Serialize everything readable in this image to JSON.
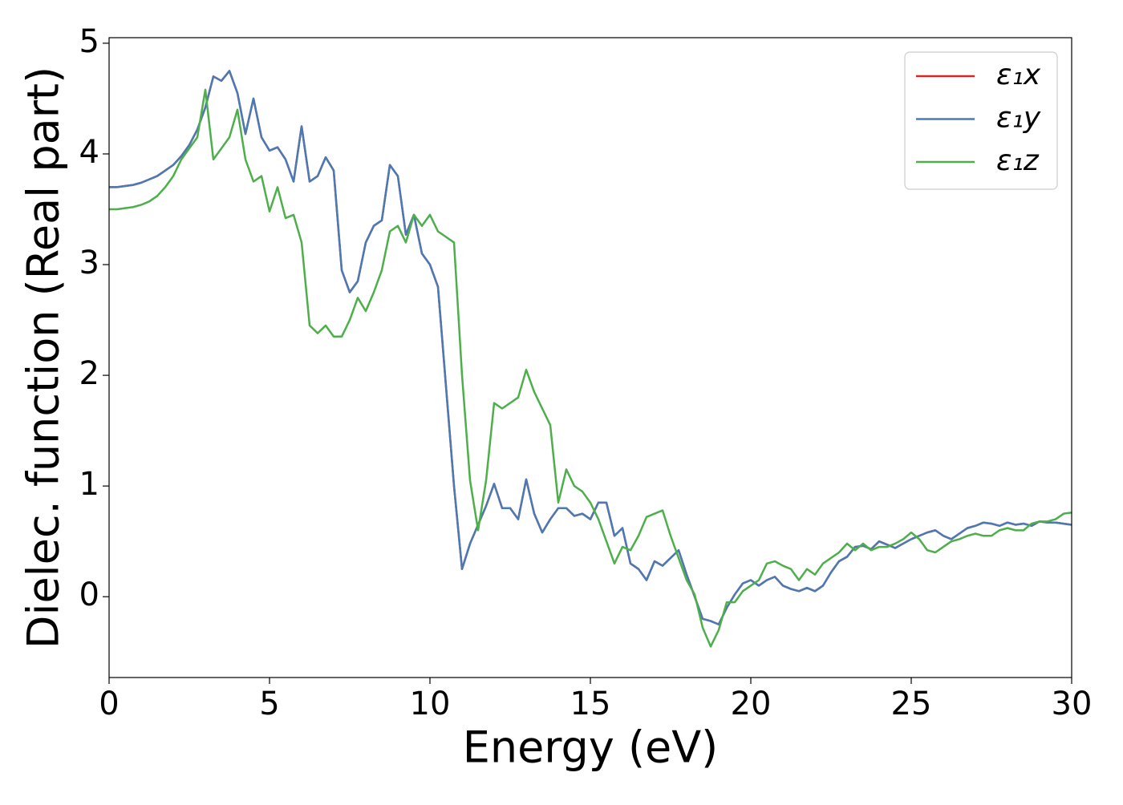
{
  "chart_data": {
    "type": "line",
    "xlabel": "Energy (eV)",
    "ylabel": "Dielec. function (Real part)",
    "x": [
      0,
      0.25,
      0.5,
      0.75,
      1,
      1.25,
      1.5,
      1.75,
      2,
      2.25,
      2.5,
      2.75,
      3,
      3.25,
      3.5,
      3.75,
      4,
      4.25,
      4.5,
      4.75,
      5,
      5.25,
      5.5,
      5.75,
      6,
      6.25,
      6.5,
      6.75,
      7,
      7.25,
      7.5,
      7.75,
      8,
      8.25,
      8.5,
      8.75,
      9,
      9.25,
      9.5,
      9.75,
      10,
      10.25,
      10.5,
      10.75,
      11,
      11.25,
      11.5,
      11.75,
      12,
      12.25,
      12.5,
      12.75,
      13,
      13.25,
      13.5,
      13.75,
      14,
      14.25,
      14.5,
      14.75,
      15,
      15.25,
      15.5,
      15.75,
      16,
      16.25,
      16.5,
      16.75,
      17,
      17.25,
      17.5,
      17.75,
      18,
      18.25,
      18.5,
      18.75,
      19,
      19.25,
      19.5,
      19.75,
      20,
      20.25,
      20.5,
      20.75,
      21,
      21.25,
      21.5,
      21.75,
      22,
      22.25,
      22.5,
      22.75,
      23,
      23.25,
      23.5,
      23.75,
      24,
      24.25,
      24.5,
      24.75,
      25,
      25.25,
      25.5,
      25.75,
      26,
      26.25,
      26.5,
      26.75,
      27,
      27.25,
      27.5,
      27.75,
      28,
      28.25,
      28.5,
      28.75,
      29,
      29.25,
      29.5,
      29.75,
      30
    ],
    "series": [
      {
        "name": "ε₁x",
        "color": "#d62728",
        "values": [
          3.7,
          3.7,
          3.71,
          3.72,
          3.74,
          3.77,
          3.8,
          3.85,
          3.9,
          3.98,
          4.08,
          4.22,
          4.42,
          4.7,
          4.66,
          4.75,
          4.55,
          4.18,
          4.5,
          4.15,
          4.03,
          4.06,
          3.95,
          3.75,
          4.25,
          3.75,
          3.8,
          3.97,
          3.85,
          2.95,
          2.75,
          2.85,
          3.2,
          3.35,
          3.4,
          3.9,
          3.8,
          3.27,
          3.45,
          3.1,
          3.0,
          2.8,
          1.9,
          1.0,
          0.25,
          0.48,
          0.65,
          0.82,
          1.02,
          0.8,
          0.8,
          0.7,
          1.06,
          0.75,
          0.58,
          0.7,
          0.8,
          0.8,
          0.73,
          0.75,
          0.7,
          0.85,
          0.85,
          0.55,
          0.62,
          0.3,
          0.25,
          0.15,
          0.32,
          0.28,
          0.35,
          0.42,
          0.2,
          0.0,
          -0.2,
          -0.22,
          -0.25,
          -0.1,
          0.02,
          0.12,
          0.15,
          0.1,
          0.15,
          0.18,
          0.1,
          0.07,
          0.05,
          0.08,
          0.05,
          0.1,
          0.22,
          0.32,
          0.36,
          0.45,
          0.46,
          0.43,
          0.5,
          0.47,
          0.44,
          0.48,
          0.52,
          0.55,
          0.58,
          0.6,
          0.55,
          0.52,
          0.57,
          0.62,
          0.64,
          0.67,
          0.66,
          0.64,
          0.67,
          0.65,
          0.66,
          0.64,
          0.68,
          0.67,
          0.67,
          0.66,
          0.65
        ]
      },
      {
        "name": "ε₁y",
        "color": "#4a7ab5",
        "values": [
          3.7,
          3.7,
          3.71,
          3.72,
          3.74,
          3.77,
          3.8,
          3.85,
          3.9,
          3.98,
          4.08,
          4.22,
          4.42,
          4.7,
          4.66,
          4.75,
          4.55,
          4.18,
          4.5,
          4.15,
          4.03,
          4.06,
          3.95,
          3.75,
          4.25,
          3.75,
          3.8,
          3.97,
          3.85,
          2.95,
          2.75,
          2.85,
          3.2,
          3.35,
          3.4,
          3.9,
          3.8,
          3.27,
          3.45,
          3.1,
          3.0,
          2.8,
          1.9,
          1.0,
          0.25,
          0.48,
          0.65,
          0.82,
          1.02,
          0.8,
          0.8,
          0.7,
          1.06,
          0.75,
          0.58,
          0.7,
          0.8,
          0.8,
          0.73,
          0.75,
          0.7,
          0.85,
          0.85,
          0.55,
          0.62,
          0.3,
          0.25,
          0.15,
          0.32,
          0.28,
          0.35,
          0.42,
          0.2,
          0.0,
          -0.2,
          -0.22,
          -0.25,
          -0.1,
          0.02,
          0.12,
          0.15,
          0.1,
          0.15,
          0.18,
          0.1,
          0.07,
          0.05,
          0.08,
          0.05,
          0.1,
          0.22,
          0.32,
          0.36,
          0.45,
          0.46,
          0.43,
          0.5,
          0.47,
          0.44,
          0.48,
          0.52,
          0.55,
          0.58,
          0.6,
          0.55,
          0.52,
          0.57,
          0.62,
          0.64,
          0.67,
          0.66,
          0.64,
          0.67,
          0.65,
          0.66,
          0.64,
          0.68,
          0.67,
          0.67,
          0.66,
          0.65
        ]
      },
      {
        "name": "ε₁z",
        "color": "#4daf4a",
        "values": [
          3.5,
          3.5,
          3.51,
          3.52,
          3.54,
          3.57,
          3.62,
          3.7,
          3.8,
          3.95,
          4.05,
          4.15,
          4.58,
          3.95,
          4.05,
          4.15,
          4.4,
          3.95,
          3.75,
          3.8,
          3.48,
          3.7,
          3.42,
          3.45,
          3.2,
          2.45,
          2.38,
          2.45,
          2.35,
          2.35,
          2.5,
          2.7,
          2.58,
          2.75,
          2.95,
          3.3,
          3.35,
          3.2,
          3.45,
          3.35,
          3.45,
          3.3,
          3.25,
          3.2,
          2.0,
          1.05,
          0.6,
          1.05,
          1.75,
          1.7,
          1.75,
          1.8,
          2.05,
          1.85,
          1.7,
          1.55,
          0.85,
          1.15,
          1.0,
          0.95,
          0.85,
          0.7,
          0.5,
          0.3,
          0.45,
          0.42,
          0.55,
          0.72,
          0.75,
          0.78,
          0.55,
          0.35,
          0.15,
          0.02,
          -0.28,
          -0.45,
          -0.3,
          -0.05,
          -0.05,
          0.05,
          0.1,
          0.15,
          0.3,
          0.32,
          0.28,
          0.25,
          0.15,
          0.25,
          0.2,
          0.3,
          0.35,
          0.4,
          0.48,
          0.42,
          0.48,
          0.42,
          0.45,
          0.45,
          0.48,
          0.52,
          0.58,
          0.52,
          0.42,
          0.4,
          0.45,
          0.5,
          0.52,
          0.55,
          0.57,
          0.55,
          0.55,
          0.6,
          0.62,
          0.6,
          0.6,
          0.66,
          0.68,
          0.68,
          0.7,
          0.75,
          0.76
        ]
      }
    ],
    "xlim": [
      0,
      30
    ],
    "xticks": [
      0,
      5,
      10,
      15,
      20,
      25,
      30
    ],
    "ylim": [
      -0.73,
      5.05
    ],
    "yticks": [
      0,
      1,
      2,
      3,
      4,
      5
    ],
    "grid": false,
    "legend": "upper right"
  }
}
